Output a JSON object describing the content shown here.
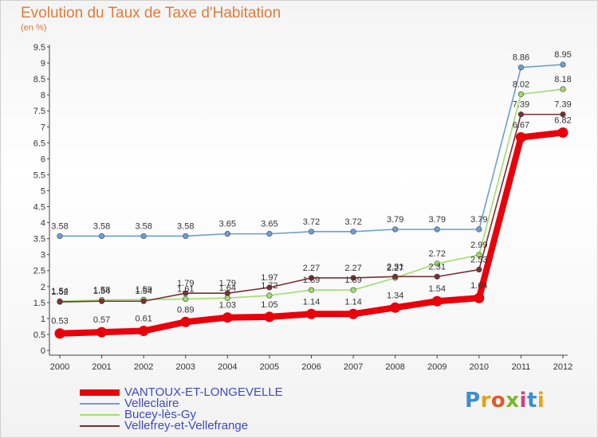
{
  "title": "Evolution du Taux de Taxe d'Habitation",
  "subtitle": "(en %)",
  "logo": {
    "text": "Proxiti",
    "letter_colors": [
      "#3a8fd0",
      "#e2a21c",
      "#e05a2a",
      "#7ab82a",
      "#d93e7a",
      "#3a8fd0",
      "#e2a21c"
    ]
  },
  "chart_data": {
    "type": "line",
    "x": [
      "2000",
      "2001",
      "2002",
      "2003",
      "2004",
      "2005",
      "2006",
      "2007",
      "2008",
      "2009",
      "2010",
      "2011",
      "2012"
    ],
    "ylim": [
      0,
      9.5
    ],
    "yticks": [
      "0",
      "0.5",
      "1",
      "1.5",
      "2",
      "2.5",
      "3",
      "3.5",
      "4",
      "4.5",
      "5",
      "5.5",
      "6",
      "6.5",
      "7",
      "7.5",
      "8",
      "8.5",
      "9",
      "9.5"
    ],
    "grid": false,
    "legend_position": "bottom-left",
    "series": [
      {
        "name": "VANTOUX-ET-LONGEVELLE",
        "color": "#e8000b",
        "values": [
          0.53,
          0.57,
          0.61,
          0.89,
          1.03,
          1.05,
          1.14,
          1.14,
          1.34,
          1.54,
          1.64,
          6.67,
          6.82
        ],
        "labels": [
          "0.53",
          "0.57",
          "0.61",
          "0.89",
          "1.03",
          "1.05",
          "1.14",
          "1.14",
          "1.34",
          "1.54",
          "1.64",
          "6.67",
          "6.82"
        ]
      },
      {
        "name": "Velleclaire",
        "color": "#6c9fd4",
        "values": [
          3.58,
          3.58,
          3.58,
          3.58,
          3.65,
          3.65,
          3.72,
          3.72,
          3.79,
          3.79,
          3.79,
          8.86,
          8.95
        ],
        "labels": [
          "3.58",
          "3.58",
          "3.58",
          "3.58",
          "3.65",
          "3.65",
          "3.72",
          "3.72",
          "3.79",
          "3.79",
          "3.79",
          "8.86",
          "8.95"
        ]
      },
      {
        "name": "Bucey-lès-Gy",
        "color": "#9fde6c",
        "values": [
          1.54,
          1.58,
          1.59,
          1.61,
          1.64,
          1.72,
          1.89,
          1.89,
          2.27,
          2.72,
          2.99,
          8.02,
          8.18
        ],
        "labels": [
          "1.54",
          "1.58",
          "1.59",
          "1.61",
          "1.64",
          "1.72",
          "1.89",
          "1.89",
          "2.27",
          "2.72",
          "2.99",
          "8.02",
          "8.18"
        ]
      },
      {
        "name": "Vellefrey-et-Vellefrange",
        "color": "#7a3030",
        "values": [
          1.52,
          1.54,
          1.54,
          1.79,
          1.79,
          1.97,
          2.27,
          2.27,
          2.31,
          2.31,
          2.53,
          7.39,
          7.39
        ],
        "labels": [
          "1.52",
          "1.54",
          "1.54",
          "1.79",
          "1.79",
          "1.97",
          "2.27",
          "2.27",
          "2.31",
          "2.31",
          "2.53",
          "7.39",
          "7.39"
        ]
      }
    ]
  }
}
